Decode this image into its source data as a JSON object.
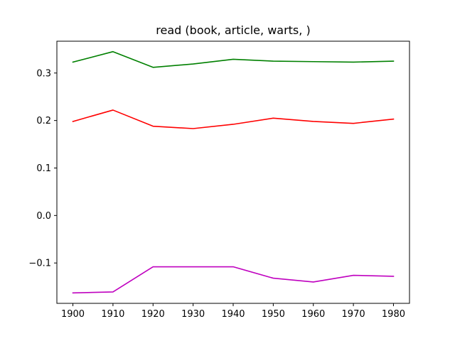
{
  "chart_data": {
    "type": "line",
    "title": "read (book, article, warts, )",
    "xlabel": "",
    "ylabel": "",
    "x": [
      1900,
      1910,
      1920,
      1930,
      1940,
      1950,
      1960,
      1970,
      1980
    ],
    "xticks": [
      1900,
      1910,
      1920,
      1930,
      1940,
      1950,
      1960,
      1970,
      1980
    ],
    "xtick_labels": [
      "1900",
      "1910",
      "1920",
      "1930",
      "1940",
      "1950",
      "1960",
      "1970",
      "1980"
    ],
    "yticks": [
      -0.1,
      0.0,
      0.1,
      0.2,
      0.3
    ],
    "ytick_labels": [
      "−0.1",
      "0.0",
      "0.1",
      "0.2",
      "0.3"
    ],
    "xlim": [
      1896,
      1984
    ],
    "ylim": [
      -0.185,
      0.367
    ],
    "grid": false,
    "legend": "none",
    "series": [
      {
        "color": "#008000",
        "values": [
          0.323,
          0.345,
          0.312,
          0.319,
          0.329,
          0.325,
          0.324,
          0.323,
          0.325
        ]
      },
      {
        "color": "#ff0000",
        "values": [
          0.198,
          0.222,
          0.188,
          0.183,
          0.192,
          0.205,
          0.198,
          0.194,
          0.203
        ]
      },
      {
        "color": "#bf00bf",
        "values": [
          -0.163,
          -0.161,
          -0.108,
          -0.108,
          -0.108,
          -0.132,
          -0.14,
          -0.126,
          -0.128
        ]
      }
    ]
  }
}
